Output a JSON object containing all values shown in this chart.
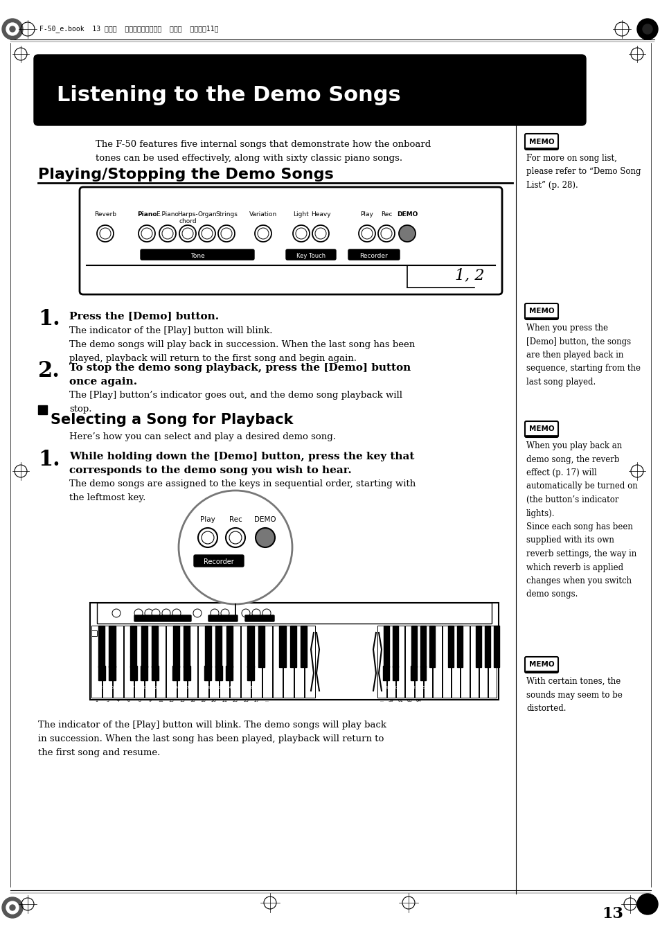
{
  "page_bg": "#ffffff",
  "header_text": "F-50_e.book  13 ページ  ２００５年２月２日  水曜日  午後５時11分",
  "title_text": "Listening to the Demo Songs",
  "section1_title": "Playing/Stopping the Demo Songs",
  "section2_title": "Selecting a Song for Playback",
  "intro_text": "The F-50 features five internal songs that demonstrate how the onboard\ntones can be used effectively, along with sixty classic piano songs.",
  "step1_bold": "Press the [Demo] button.",
  "step1_text1": "The indicator of the [Play] button will blink.",
  "step1_text2": "The demo songs will play back in succession. When the last song has been\nplayed, playback will return to the first song and begin again.",
  "step2_bold": "To stop the demo song playback, press the [Demo] button\nonce again.",
  "step2_text": "The [Play] button’s indicator goes out, and the demo song playback will\nstop.",
  "select_intro": "Here’s how you can select and play a desired demo song.",
  "select_step1_bold": "While holding down the [Demo] button, press the key that\ncorresponds to the demo song you wish to hear.",
  "select_step1_text": "The demo songs are assigned to the keys in sequential order, starting with\nthe leftmost key.",
  "final_text": "The indicator of the [Play] button will blink. The demo songs will play back\nin succession. When the last song has been played, playback will return to\nthe first song and resume.",
  "memo1_text": "For more on song list,\nplease refer to “Demo Song\nList” (p. 28).",
  "memo2_text": "When you press the\n[Demo] button, the songs\nare then played back in\nsequence, starting from the\nlast song played.",
  "memo3_text": "When you play back an\ndemo song, the reverb\neffect (p. 17) will\nautomatically be turned on\n(the button’s indicator\nlights).\nSince each song has been\nsupplied with its own\nreverb settings, the way in\nwhich reverb is applied\nchanges when you switch\ndemo songs.",
  "memo4_text": "With certain tones, the\nsounds may seem to be\ndistorted.",
  "page_number": "13",
  "label_12": "1, 2"
}
